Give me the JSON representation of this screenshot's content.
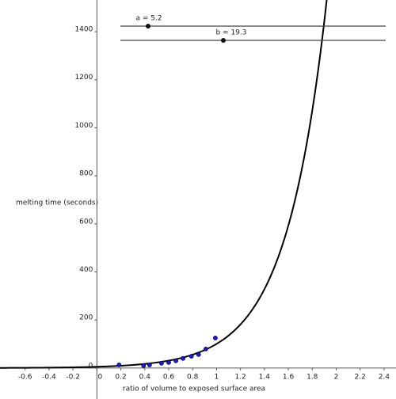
{
  "chart_data": {
    "type": "scatter",
    "x": [
      0.185,
      0.39,
      0.44,
      0.54,
      0.6,
      0.66,
      0.72,
      0.79,
      0.85,
      0.91,
      0.99
    ],
    "values": [
      13,
      10,
      13,
      20,
      23,
      30,
      40,
      49,
      56,
      79,
      125
    ],
    "color": "#1a1acc",
    "xlabel": "ratio of volume to exposed surface area",
    "ylabel": "melting time (seconds)",
    "xlim": [
      -0.81,
      2.5
    ],
    "ylim": [
      -129,
      1532
    ],
    "xticks": [
      -0.6,
      -0.4,
      -0.2,
      0,
      0.2,
      0.4,
      0.6,
      0.8,
      1,
      1.2,
      1.4,
      1.6,
      1.8,
      2,
      2.2,
      2.4
    ],
    "yticks": [
      0,
      200,
      400,
      600,
      800,
      1000,
      1200,
      1400
    ],
    "sliders": [
      {
        "label": "a = 5.2",
        "value": 5.2
      },
      {
        "label": "b = 19.3",
        "value": 19.3
      }
    ]
  }
}
